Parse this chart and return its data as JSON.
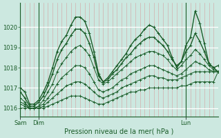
{
  "title": "Pression niveau de la mer( hPa )",
  "ylabel_ticks": [
    1016,
    1017,
    1018,
    1019,
    1020
  ],
  "x_tick_labels": [
    "Sam",
    "Dim",
    "Lun"
  ],
  "x_tick_positions": [
    0,
    4,
    36
  ],
  "bg_color": "#cce8e0",
  "grid_color_major": "#ffffff",
  "grid_color_minor": "#d4a0a0",
  "line_color": "#1a5c28",
  "series": [
    [
      1017.0,
      1016.8,
      1016.2,
      1016.2,
      1016.4,
      1016.8,
      1017.3,
      1018.0,
      1018.8,
      1019.3,
      1019.6,
      1020.1,
      1020.5,
      1020.5,
      1020.3,
      1019.7,
      1018.8,
      1017.7,
      1017.3,
      1017.5,
      1017.8,
      1018.1,
      1018.4,
      1018.7,
      1019.1,
      1019.4,
      1019.6,
      1019.9,
      1020.1,
      1020.0,
      1019.7,
      1019.4,
      1019.1,
      1018.5,
      1018.0,
      1018.3,
      1019.1,
      1019.5,
      1020.8,
      1020.2,
      1019.2,
      1018.2,
      1018.0,
      1018.1
    ],
    [
      1016.8,
      1016.5,
      1016.1,
      1016.1,
      1016.3,
      1016.6,
      1017.1,
      1017.7,
      1018.4,
      1018.9,
      1019.2,
      1019.6,
      1019.9,
      1019.9,
      1019.7,
      1019.2,
      1018.5,
      1017.6,
      1017.3,
      1017.4,
      1017.7,
      1017.9,
      1018.2,
      1018.5,
      1018.7,
      1019.0,
      1019.2,
      1019.4,
      1019.5,
      1019.5,
      1019.3,
      1019.1,
      1018.8,
      1018.4,
      1018.1,
      1018.3,
      1018.8,
      1019.1,
      1019.7,
      1019.3,
      1018.8,
      1018.2,
      1018.0,
      1017.8
    ],
    [
      1016.5,
      1016.3,
      1016.0,
      1016.0,
      1016.1,
      1016.4,
      1016.8,
      1017.2,
      1017.8,
      1018.2,
      1018.5,
      1018.8,
      1019.0,
      1019.1,
      1018.9,
      1018.6,
      1018.0,
      1017.4,
      1017.2,
      1017.3,
      1017.5,
      1017.7,
      1017.9,
      1018.1,
      1018.3,
      1018.5,
      1018.6,
      1018.7,
      1018.8,
      1018.8,
      1018.7,
      1018.6,
      1018.4,
      1018.1,
      1017.9,
      1018.1,
      1018.4,
      1018.6,
      1018.9,
      1018.7,
      1018.4,
      1018.1,
      1017.9,
      1017.8
    ],
    [
      1016.3,
      1016.2,
      1016.0,
      1016.0,
      1016.1,
      1016.2,
      1016.5,
      1016.8,
      1017.2,
      1017.5,
      1017.7,
      1017.9,
      1018.1,
      1018.1,
      1018.0,
      1017.7,
      1017.3,
      1016.9,
      1016.8,
      1016.9,
      1017.0,
      1017.2,
      1017.4,
      1017.5,
      1017.7,
      1017.8,
      1017.9,
      1018.0,
      1018.1,
      1018.1,
      1018.0,
      1017.9,
      1017.8,
      1017.7,
      1017.6,
      1017.7,
      1017.9,
      1018.1,
      1018.3,
      1018.2,
      1018.1,
      1017.9,
      1017.8,
      1017.8
    ],
    [
      1016.2,
      1016.1,
      1016.0,
      1016.0,
      1016.0,
      1016.1,
      1016.3,
      1016.5,
      1016.7,
      1016.9,
      1017.1,
      1017.2,
      1017.3,
      1017.3,
      1017.2,
      1017.0,
      1016.8,
      1016.6,
      1016.5,
      1016.6,
      1016.7,
      1016.8,
      1017.0,
      1017.1,
      1017.2,
      1017.3,
      1017.4,
      1017.5,
      1017.6,
      1017.6,
      1017.5,
      1017.5,
      1017.4,
      1017.4,
      1017.4,
      1017.5,
      1017.6,
      1017.7,
      1017.8,
      1017.8,
      1017.8,
      1017.8,
      1017.8,
      1017.8
    ],
    [
      1016.0,
      1016.0,
      1016.0,
      1016.0,
      1016.0,
      1016.0,
      1016.1,
      1016.2,
      1016.3,
      1016.4,
      1016.5,
      1016.6,
      1016.6,
      1016.6,
      1016.5,
      1016.4,
      1016.3,
      1016.2,
      1016.2,
      1016.3,
      1016.4,
      1016.5,
      1016.6,
      1016.7,
      1016.8,
      1016.8,
      1016.9,
      1016.9,
      1017.0,
      1017.0,
      1017.0,
      1017.0,
      1017.0,
      1017.0,
      1017.0,
      1017.1,
      1017.1,
      1017.2,
      1017.3,
      1017.3,
      1017.3,
      1017.3,
      1017.3,
      1017.8
    ]
  ],
  "xlim": [
    0,
    43
  ],
  "ylim": [
    1015.6,
    1021.2
  ],
  "n_vertical_lines": 44,
  "figsize": [
    3.2,
    2.0
  ],
  "dpi": 100
}
